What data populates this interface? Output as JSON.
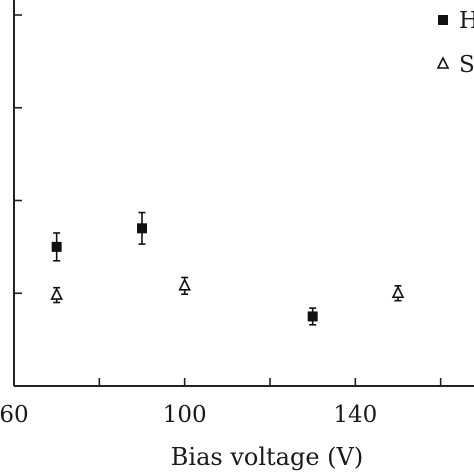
{
  "chart_data": {
    "type": "scatter",
    "xlabel": "Bias voltage (V)",
    "ylabel": "",
    "xlim": [
      60,
      180
    ],
    "ylim": [
      0,
      4
    ],
    "x_ticks": [
      60,
      80,
      100,
      120,
      140,
      160,
      180
    ],
    "x_tick_labels": [
      "60",
      "100",
      "140"
    ],
    "y_ticks": [
      0,
      1,
      2,
      3,
      4
    ],
    "legend_position": "top-right (cropped)",
    "series": [
      {
        "name": "H",
        "marker": "filled-square",
        "color": "#111111",
        "points": [
          {
            "x": 70,
            "y": 1.5,
            "err": 0.15
          },
          {
            "x": 90,
            "y": 1.7,
            "err": 0.17
          },
          {
            "x": 130,
            "y": 0.75,
            "err": 0.09
          }
        ]
      },
      {
        "name": "S",
        "marker": "open-triangle",
        "color": "#111111",
        "points": [
          {
            "x": 70,
            "y": 0.98,
            "err": 0.08
          },
          {
            "x": 100,
            "y": 1.08,
            "err": 0.09
          },
          {
            "x": 150,
            "y": 1.0,
            "err": 0.08
          }
        ]
      }
    ]
  }
}
